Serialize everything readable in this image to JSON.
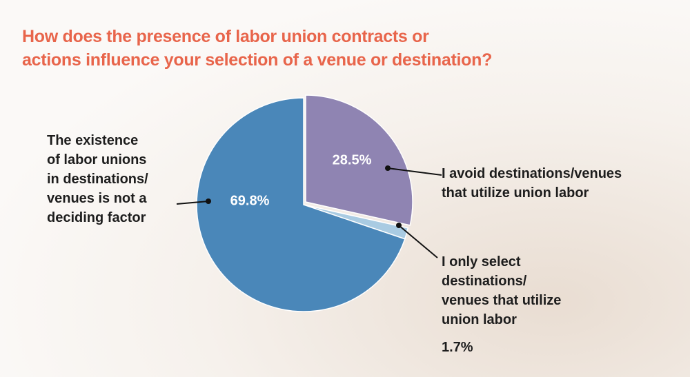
{
  "chart_data": {
    "type": "pie",
    "title": "How does the presence of labor union contracts or\nactions influence your selection of a venue or destination?",
    "categories": [
      "I avoid destinations/venues\nthat utilize union labor",
      "I only select\ndestinations/\nvenues that utilize\nunion labor",
      "The existence\nof labor unions\nin destinations/\nvenues is not a\ndeciding factor"
    ],
    "values": [
      28.5,
      1.7,
      69.8
    ],
    "value_labels": [
      "28.5%",
      "1.7%",
      "69.8%"
    ],
    "colors": [
      "#8f84b2",
      "#a9cbe2",
      "#4a87b9"
    ]
  }
}
